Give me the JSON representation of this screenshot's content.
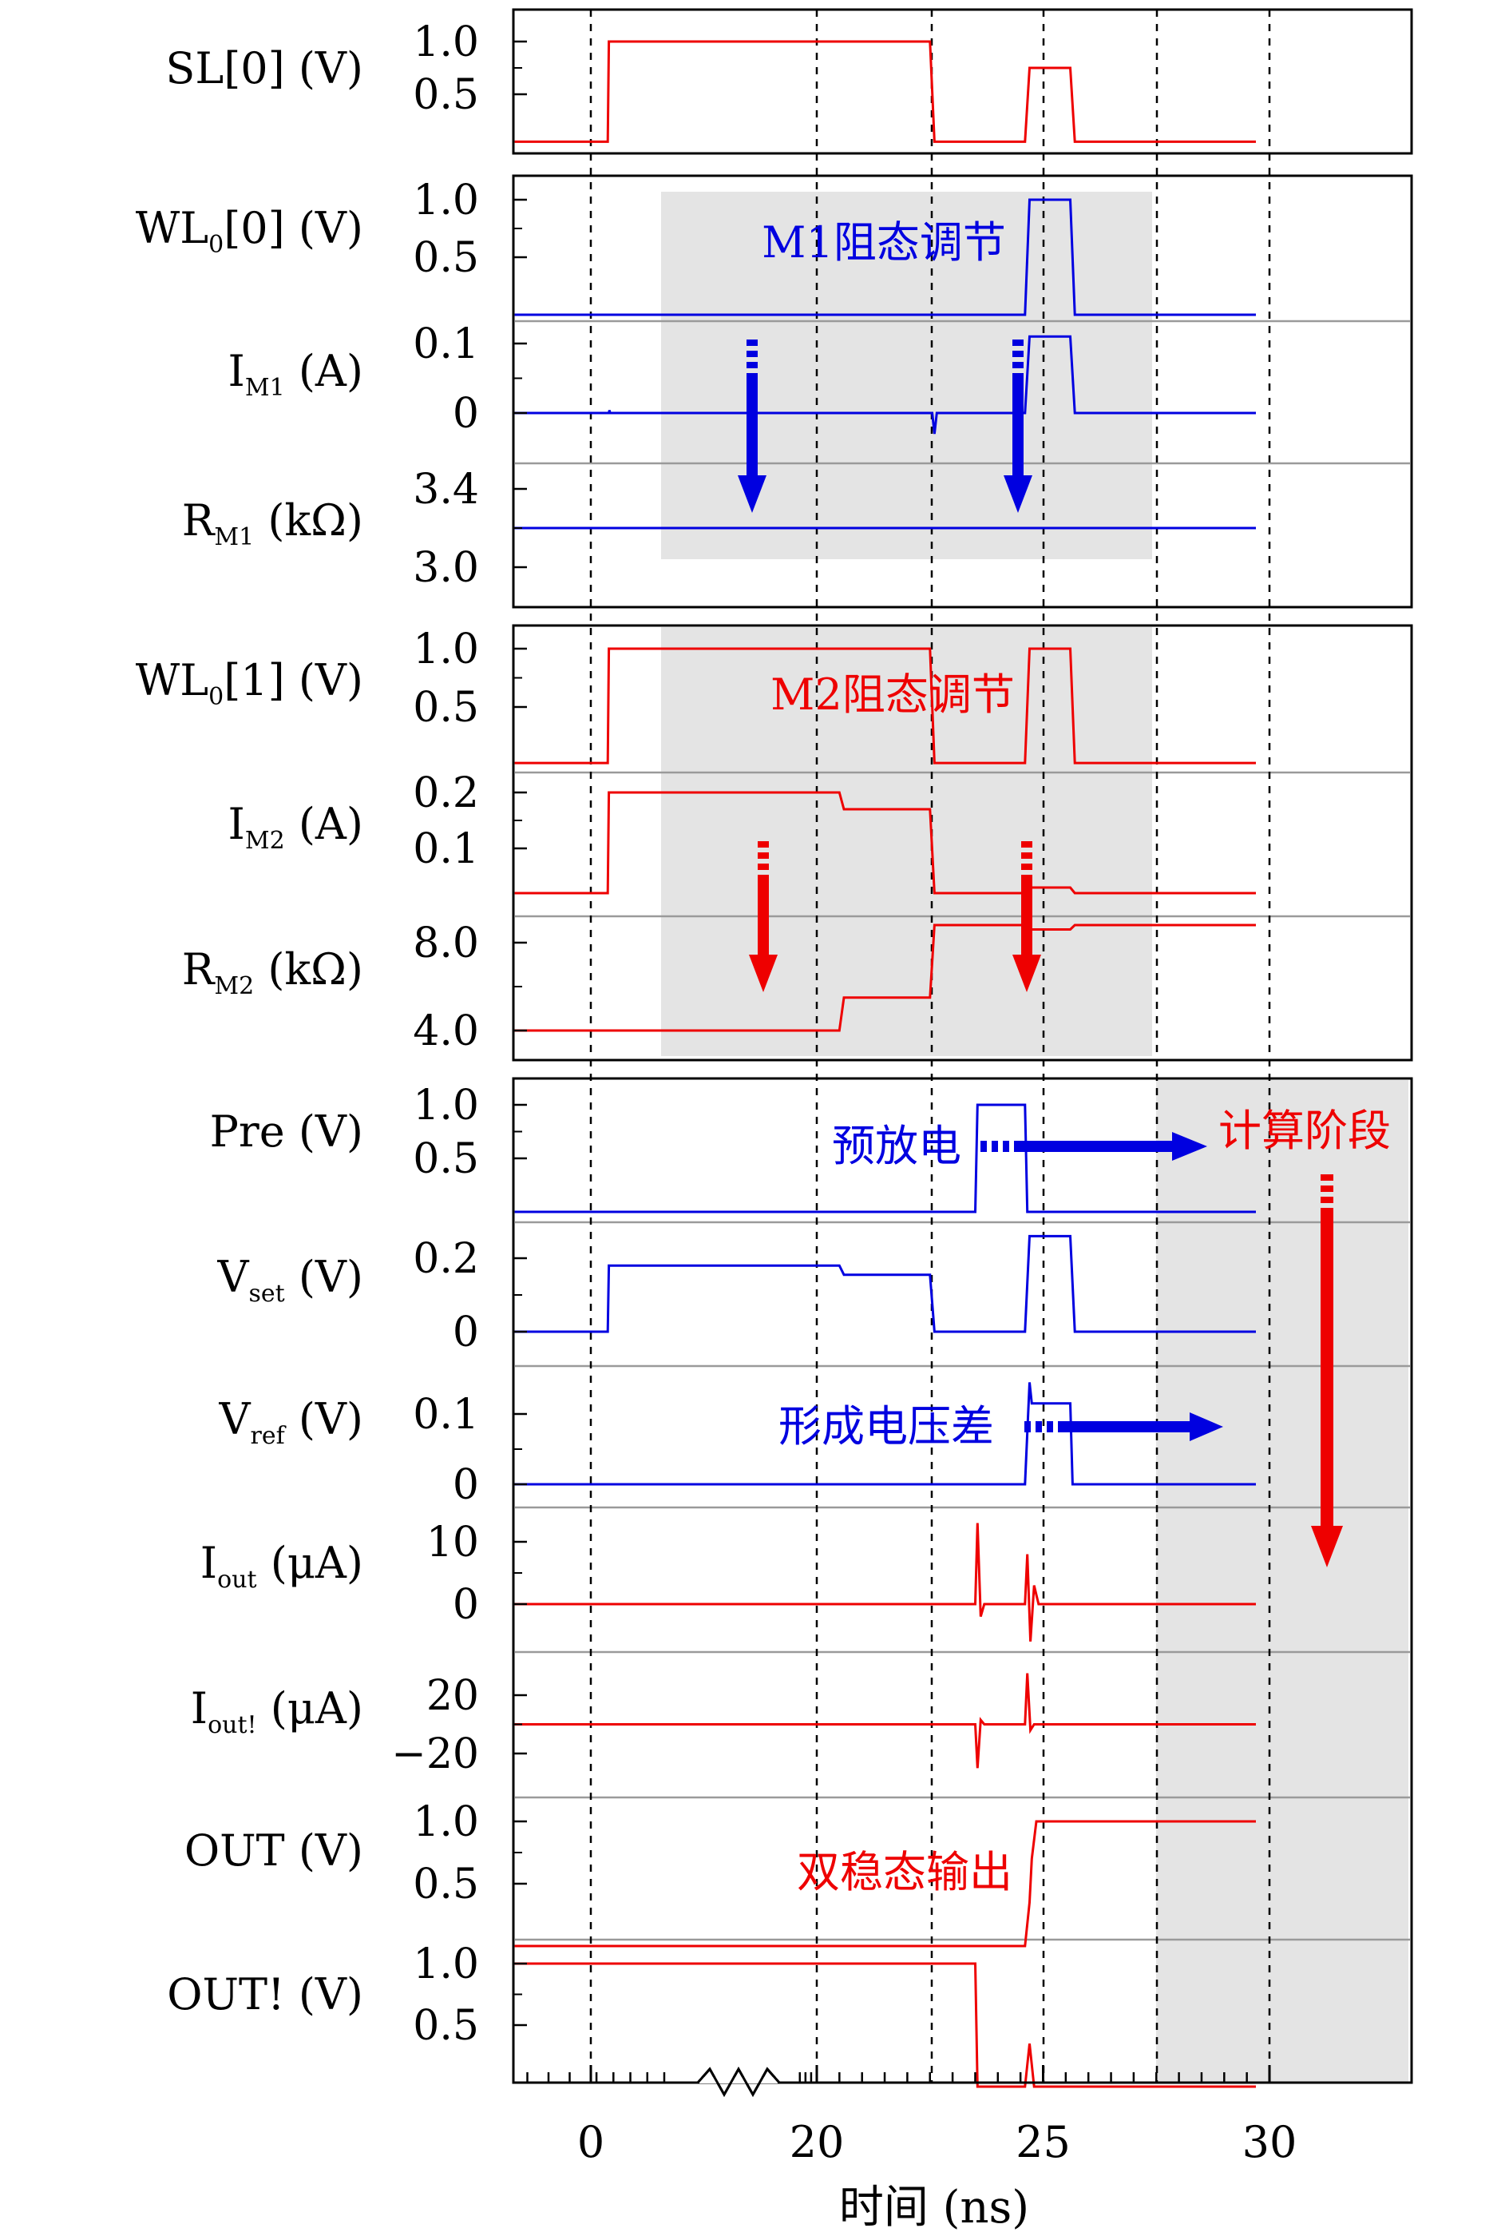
{
  "chart_data": {
    "type": "line",
    "xlabel": "时间 (ns)",
    "x_ticks": [
      "0",
      "20",
      "25",
      "30"
    ],
    "x_break": "axis break between 0 and 20",
    "grid": "dashed vertical reference lines",
    "colors": {
      "blue": "#0000e0",
      "red": "#ee0000",
      "shade": "#e4e4e4"
    },
    "signals": [
      {
        "label": "SL[0] (V)",
        "color": "red",
        "ticks": [
          "1.0",
          "0.5"
        ],
        "y": [
          0.01,
          1.02
        ],
        "points": [
          [
            -1.8,
            0.05
          ],
          [
            1.5,
            0.05
          ],
          [
            1.6,
            1.0
          ],
          [
            22.5,
            1.0
          ],
          [
            22.6,
            0.05
          ],
          [
            24.6,
            0.05
          ],
          [
            24.7,
            0.75
          ],
          [
            25.6,
            0.75
          ],
          [
            25.7,
            0.05
          ],
          [
            29.7,
            0.05
          ]
        ]
      },
      {
        "label": "WL0[0] (V)",
        "color": "blue",
        "ticks": [
          "1.0",
          "0.5"
        ],
        "y": [
          -0.05,
          1.05
        ],
        "points": [
          [
            -1.8,
            0
          ],
          [
            24.6,
            0
          ],
          [
            24.7,
            1.0
          ],
          [
            25.6,
            1.0
          ],
          [
            25.7,
            0
          ],
          [
            29.7,
            0
          ]
        ]
      },
      {
        "label": "IM1 (A)",
        "color": "blue",
        "ticks": [
          "0.1",
          "0"
        ],
        "y": [
          -0.05,
          0.13
        ],
        "points": [
          [
            -1.8,
            0
          ],
          [
            1.6,
            0
          ],
          [
            1.65,
            0.004
          ],
          [
            1.7,
            0
          ],
          [
            22.55,
            0
          ],
          [
            22.6,
            -0.03
          ],
          [
            22.65,
            0
          ],
          [
            24.6,
            0
          ],
          [
            24.7,
            0.11
          ],
          [
            25.6,
            0.11
          ],
          [
            25.7,
            0
          ],
          [
            29.7,
            0
          ]
        ]
      },
      {
        "label": "RM1 (kΩ)",
        "color": "blue",
        "ticks": [
          "3.4",
          "3.0"
        ],
        "y": [
          2.9,
          3.5
        ],
        "points": [
          [
            -1.8,
            3.2
          ],
          [
            29.7,
            3.2
          ]
        ]
      },
      {
        "label": "WL0[1] (V)",
        "color": "red",
        "ticks": [
          "1.0",
          "0.5"
        ],
        "y": [
          -0.05,
          1.05
        ],
        "points": [
          [
            -1.8,
            0.02
          ],
          [
            1.5,
            0.02
          ],
          [
            1.6,
            1.0
          ],
          [
            22.5,
            1.0
          ],
          [
            22.6,
            0.02
          ],
          [
            24.6,
            0.02
          ],
          [
            24.7,
            1.0
          ],
          [
            25.6,
            1.0
          ],
          [
            25.7,
            0.02
          ],
          [
            29.7,
            0.02
          ]
        ]
      },
      {
        "label": "IM2 (A)",
        "color": "red",
        "ticks": [
          "0.2",
          "0.1"
        ],
        "y": [
          -0.02,
          0.22
        ],
        "points": [
          [
            -1.8,
            0.02
          ],
          [
            1.5,
            0.02
          ],
          [
            1.6,
            0.2
          ],
          [
            20.5,
            0.2
          ],
          [
            20.6,
            0.17
          ],
          [
            22.5,
            0.17
          ],
          [
            22.6,
            0.02
          ],
          [
            24.6,
            0.02
          ],
          [
            24.7,
            0.03
          ],
          [
            25.6,
            0.03
          ],
          [
            25.7,
            0.02
          ],
          [
            29.7,
            0.02
          ]
        ]
      },
      {
        "label": "RM2 (kΩ)",
        "color": "red",
        "ticks": [
          "8.0",
          "4.0"
        ],
        "y": [
          3.5,
          9.5
        ],
        "points": [
          [
            -1.8,
            4.0
          ],
          [
            20.5,
            4.0
          ],
          [
            20.6,
            5.5
          ],
          [
            22.5,
            5.5
          ],
          [
            22.6,
            8.8
          ],
          [
            24.6,
            8.8
          ],
          [
            24.7,
            8.6
          ],
          [
            25.6,
            8.6
          ],
          [
            25.7,
            8.8
          ],
          [
            29.7,
            8.8
          ]
        ]
      },
      {
        "label": "Pre (V)",
        "color": "blue",
        "ticks": [
          "1.0",
          "0.5"
        ],
        "y": [
          -0.05,
          1.05
        ],
        "points": [
          [
            -1.8,
            0
          ],
          [
            23.5,
            0
          ],
          [
            23.55,
            1.0
          ],
          [
            24.6,
            1.0
          ],
          [
            24.65,
            0
          ],
          [
            29.7,
            0
          ]
        ]
      },
      {
        "label": "Vset (V)",
        "color": "blue",
        "ticks": [
          "0.2",
          "0"
        ],
        "y": [
          -0.05,
          0.3
        ],
        "points": [
          [
            -1.8,
            0
          ],
          [
            1.5,
            0
          ],
          [
            1.6,
            0.18
          ],
          [
            20.5,
            0.18
          ],
          [
            20.6,
            0.155
          ],
          [
            22.5,
            0.155
          ],
          [
            22.6,
            0
          ],
          [
            24.6,
            0
          ],
          [
            24.7,
            0.26
          ],
          [
            25.6,
            0.26
          ],
          [
            25.7,
            0
          ],
          [
            29.7,
            0
          ]
        ]
      },
      {
        "label": "Vref (V)",
        "color": "blue",
        "ticks": [
          "0.1",
          "0"
        ],
        "y": [
          -0.03,
          0.16
        ],
        "points": [
          [
            -1.8,
            0
          ],
          [
            24.6,
            0
          ],
          [
            24.7,
            0.145
          ],
          [
            24.75,
            0.115
          ],
          [
            25.6,
            0.115
          ],
          [
            25.65,
            0
          ],
          [
            29.7,
            0
          ]
        ]
      },
      {
        "label": "Iout (μA)",
        "color": "red",
        "ticks": [
          "10",
          "0"
        ],
        "y": [
          -6,
          16
        ],
        "points": [
          [
            -1.8,
            0
          ],
          [
            23.5,
            0
          ],
          [
            23.55,
            13
          ],
          [
            23.62,
            -2
          ],
          [
            23.7,
            0
          ],
          [
            24.6,
            0
          ],
          [
            24.65,
            8
          ],
          [
            24.72,
            -6
          ],
          [
            24.8,
            3
          ],
          [
            24.9,
            0
          ],
          [
            29.7,
            0
          ]
        ]
      },
      {
        "label": "Iout! (μA)",
        "color": "red",
        "ticks": [
          "20",
          "−20"
        ],
        "y": [
          -35,
          40
        ],
        "points": [
          [
            -1.8,
            0
          ],
          [
            23.5,
            0
          ],
          [
            23.55,
            -30
          ],
          [
            23.62,
            3
          ],
          [
            23.7,
            0
          ],
          [
            24.6,
            0
          ],
          [
            24.65,
            35
          ],
          [
            24.72,
            -4
          ],
          [
            24.8,
            0
          ],
          [
            29.7,
            0
          ]
        ]
      },
      {
        "label": "OUT (V)",
        "color": "red",
        "ticks": [
          "1.0",
          "0.5"
        ],
        "y": [
          -0.05,
          1.05
        ],
        "points": [
          [
            -1.8,
            0
          ],
          [
            24.6,
            0
          ],
          [
            24.7,
            0.35
          ],
          [
            24.75,
            0.7
          ],
          [
            24.85,
            1.0
          ],
          [
            29.7,
            1.0
          ]
        ]
      },
      {
        "label": "OUT! (V)",
        "color": "red",
        "ticks": [
          "1.0",
          "0.5"
        ],
        "y": [
          -0.05,
          1.05
        ],
        "points": [
          [
            -1.8,
            1.0
          ],
          [
            23.5,
            1.0
          ],
          [
            23.55,
            0
          ],
          [
            24.6,
            0
          ],
          [
            24.7,
            0.35
          ],
          [
            24.8,
            0
          ],
          [
            29.7,
            0
          ]
        ]
      }
    ],
    "annotations": [
      {
        "text": "M1阻态调节",
        "color": "blue"
      },
      {
        "text": "M2阻态调节",
        "color": "red"
      },
      {
        "text": "预放电",
        "color": "blue"
      },
      {
        "text": "计算阶段",
        "color": "red"
      },
      {
        "text": "形成电压差",
        "color": "blue"
      },
      {
        "text": "双稳态输出",
        "color": "red"
      }
    ]
  }
}
